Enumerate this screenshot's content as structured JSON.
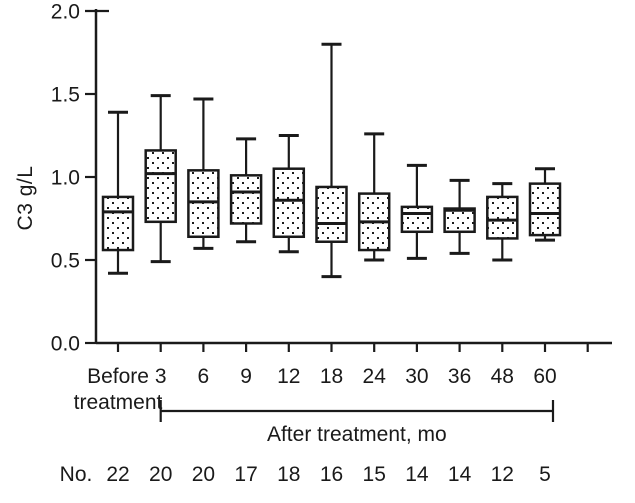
{
  "chart_data": {
    "type": "boxplot",
    "title": "",
    "ylabel": "C3 g/L",
    "xlabel": "",
    "ylim": [
      0.0,
      2.0
    ],
    "yticks": [
      0.0,
      0.5,
      1.0,
      1.5,
      2.0
    ],
    "ytick_labels": [
      "0.0",
      "0.5",
      "1.0",
      "1.5",
      "2.0"
    ],
    "grid": false,
    "legend": false,
    "categories": [
      "Before treatment",
      "3",
      "6",
      "9",
      "12",
      "18",
      "24",
      "30",
      "36",
      "48",
      "60"
    ],
    "boxes": [
      {
        "label": "Before treatment",
        "n": 22,
        "whisker_low": 0.42,
        "q1": 0.56,
        "median": 0.79,
        "q3": 0.88,
        "whisker_high": 1.39
      },
      {
        "label": "3",
        "n": 20,
        "whisker_low": 0.49,
        "q1": 0.73,
        "median": 1.02,
        "q3": 1.16,
        "whisker_high": 1.49
      },
      {
        "label": "6",
        "n": 20,
        "whisker_low": 0.57,
        "q1": 0.64,
        "median": 0.85,
        "q3": 1.04,
        "whisker_high": 1.47
      },
      {
        "label": "9",
        "n": 17,
        "whisker_low": 0.61,
        "q1": 0.72,
        "median": 0.91,
        "q3": 1.01,
        "whisker_high": 1.23
      },
      {
        "label": "12",
        "n": 18,
        "whisker_low": 0.55,
        "q1": 0.64,
        "median": 0.86,
        "q3": 1.05,
        "whisker_high": 1.25
      },
      {
        "label": "18",
        "n": 16,
        "whisker_low": 0.4,
        "q1": 0.61,
        "median": 0.72,
        "q3": 0.94,
        "whisker_high": 1.8
      },
      {
        "label": "24",
        "n": 15,
        "whisker_low": 0.5,
        "q1": 0.56,
        "median": 0.73,
        "q3": 0.9,
        "whisker_high": 1.26
      },
      {
        "label": "30",
        "n": 14,
        "whisker_low": 0.51,
        "q1": 0.67,
        "median": 0.78,
        "q3": 0.82,
        "whisker_high": 1.07
      },
      {
        "label": "36",
        "n": 14,
        "whisker_low": 0.54,
        "q1": 0.67,
        "median": 0.8,
        "q3": 0.81,
        "whisker_high": 0.98
      },
      {
        "label": "48",
        "n": 12,
        "whisker_low": 0.5,
        "q1": 0.63,
        "median": 0.74,
        "q3": 0.88,
        "whisker_high": 0.96
      },
      {
        "label": "60",
        "n": 5,
        "whisker_low": 0.62,
        "q1": 0.65,
        "median": 0.78,
        "q3": 0.96,
        "whisker_high": 1.05
      }
    ],
    "x_bracket": {
      "label": "After treatment, mo",
      "from_category": "3",
      "to_category": "60"
    },
    "counts_row": {
      "label": "No.",
      "values": [
        "22",
        "20",
        "20",
        "17",
        "18",
        "16",
        "15",
        "14",
        "14",
        "12",
        "5"
      ]
    },
    "style": {
      "line_color": "#1a1a1a",
      "background": "#ffffff",
      "box_fill": "stippled-dots"
    }
  }
}
